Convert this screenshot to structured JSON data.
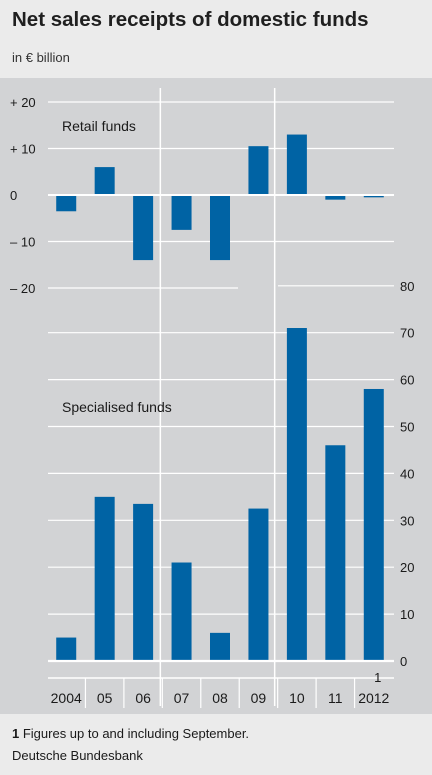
{
  "title": "Net sales receipts of domestic funds",
  "unit": "in € billion",
  "footnote": {
    "marker": "1",
    "text": " Figures up to and including September."
  },
  "source": "Deutsche Bundesbank",
  "colors": {
    "bar": "#0063a4",
    "plot_background": "#d2d3d5",
    "gridline": "#ffffff",
    "page_background": "#ebebeb"
  },
  "chart_data": [
    {
      "type": "bar",
      "panel": "top",
      "label": "Retail funds",
      "categories": [
        "2004",
        "05",
        "06",
        "07",
        "08",
        "09",
        "10",
        "11",
        "2012"
      ],
      "values": [
        -3.5,
        6,
        -14,
        -7.5,
        -14,
        10.5,
        13,
        -1,
        -0.5
      ],
      "ylim": [
        -20,
        20
      ],
      "yticks": [
        20,
        10,
        0,
        -10,
        -20
      ],
      "ytick_labels": [
        "+ 20",
        "+ 10",
        "0",
        "– 10",
        "– 20"
      ],
      "axis_side": "left",
      "grid": true
    },
    {
      "type": "bar",
      "panel": "bottom",
      "label": "Specialised funds",
      "categories": [
        "2004",
        "05",
        "06",
        "07",
        "08",
        "09",
        "10",
        "11",
        "2012"
      ],
      "category_note": {
        "index": 8,
        "marker": "1"
      },
      "values": [
        5,
        35,
        33.5,
        21,
        6,
        32.5,
        71,
        46,
        58
      ],
      "ylim": [
        0,
        80
      ],
      "yticks": [
        80,
        70,
        60,
        50,
        40,
        30,
        20,
        10,
        0
      ],
      "ytick_labels": [
        "80",
        "70",
        "60",
        "50",
        "40",
        "30",
        "20",
        "10",
        "0"
      ],
      "axis_side": "right",
      "grid": true
    }
  ]
}
